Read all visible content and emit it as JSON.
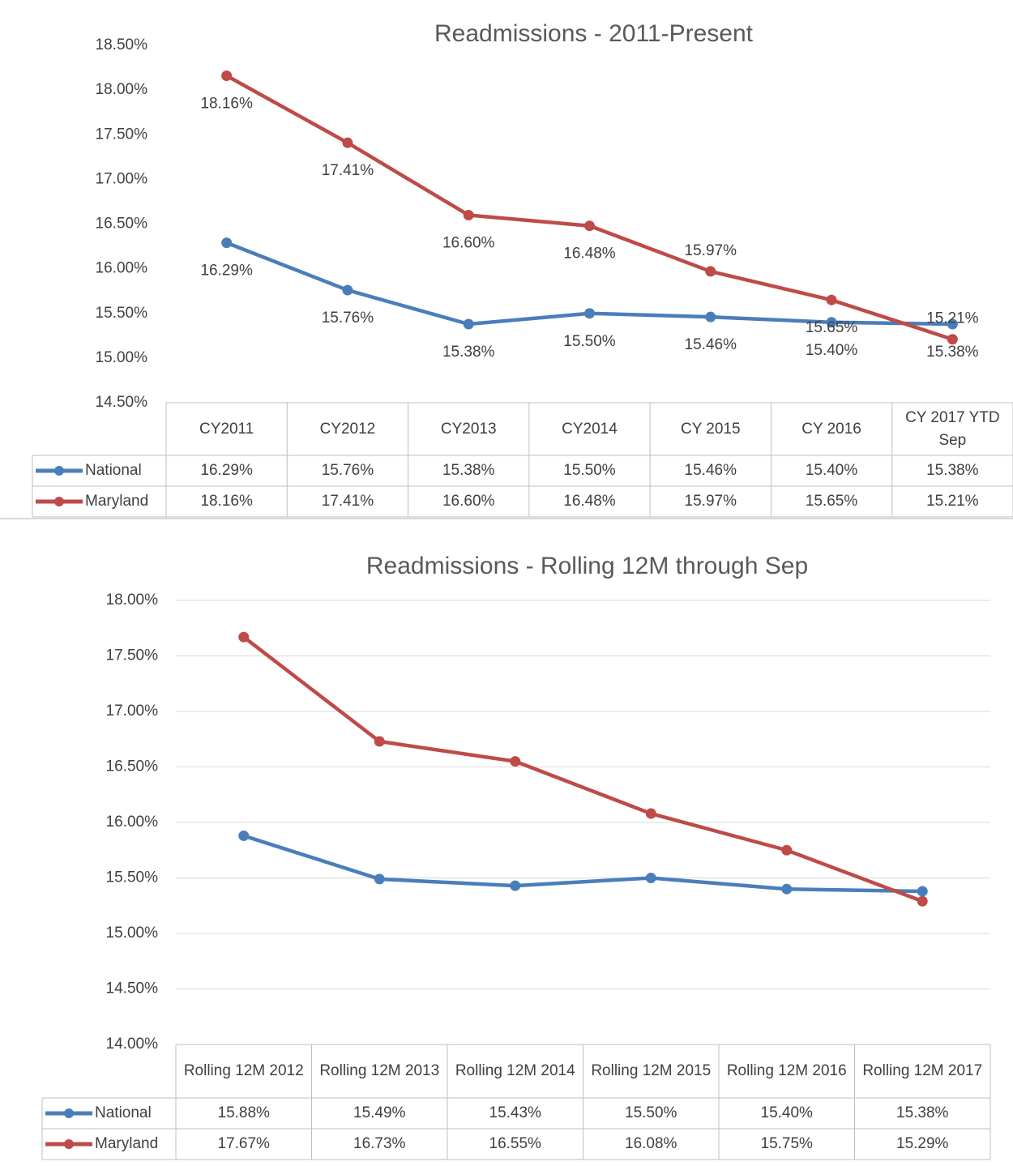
{
  "chart_data": [
    {
      "type": "line",
      "title": "Readmissions - 2011-Present",
      "categories": [
        "CY2011",
        "CY2012",
        "CY2013",
        "CY2014",
        "CY 2015",
        "CY 2016",
        "CY 2017 YTD Sep"
      ],
      "series": [
        {
          "name": "National",
          "color": "#4a7ebb",
          "values": [
            16.29,
            15.76,
            15.38,
            15.5,
            15.46,
            15.4,
            15.38
          ],
          "value_labels": [
            "16.29%",
            "15.76%",
            "15.38%",
            "15.50%",
            "15.46%",
            "15.40%",
            "15.38%"
          ]
        },
        {
          "name": "Maryland",
          "color": "#be4b48",
          "values": [
            18.16,
            17.41,
            16.6,
            16.48,
            15.97,
            15.65,
            15.21
          ],
          "value_labels": [
            "18.16%",
            "17.41%",
            "16.60%",
            "16.48%",
            "15.97%",
            "15.65%",
            "15.21%"
          ]
        }
      ],
      "ylim": [
        14.5,
        18.5
      ],
      "yticks": [
        {
          "value": 14.5,
          "label": "14.50%"
        },
        {
          "value": 15,
          "label": "15.00%"
        },
        {
          "value": 15.5,
          "label": "15.50%"
        },
        {
          "value": 16,
          "label": "16.00%"
        },
        {
          "value": 16.5,
          "label": "16.50%"
        },
        {
          "value": 17,
          "label": "17.00%"
        },
        {
          "value": 17.5,
          "label": "17.50%"
        },
        {
          "value": 18,
          "label": "18.00%"
        },
        {
          "value": 18.5,
          "label": "18.50%"
        }
      ],
      "grid": false,
      "data_labels": true
    },
    {
      "type": "line",
      "title": "Readmissions - Rolling 12M through Sep",
      "categories": [
        "Rolling 12M 2012",
        "Rolling 12M 2013",
        "Rolling 12M 2014",
        "Rolling 12M 2015",
        "Rolling 12M 2016",
        "Rolling 12M 2017"
      ],
      "series": [
        {
          "name": "National",
          "color": "#4a7ebb",
          "values": [
            15.88,
            15.49,
            15.43,
            15.5,
            15.4,
            15.38
          ],
          "value_labels": [
            "15.88%",
            "15.49%",
            "15.43%",
            "15.50%",
            "15.40%",
            "15.38%"
          ]
        },
        {
          "name": "Maryland",
          "color": "#be4b48",
          "values": [
            17.67,
            16.73,
            16.55,
            16.08,
            15.75,
            15.29
          ],
          "value_labels": [
            "17.67%",
            "16.73%",
            "16.55%",
            "16.08%",
            "15.75%",
            "15.29%"
          ]
        }
      ],
      "ylim": [
        14,
        18
      ],
      "yticks": [
        {
          "value": 14,
          "label": "14.00%"
        },
        {
          "value": 14.5,
          "label": "14.50%"
        },
        {
          "value": 15,
          "label": "15.00%"
        },
        {
          "value": 15.5,
          "label": "15.50%"
        },
        {
          "value": 16,
          "label": "16.00%"
        },
        {
          "value": 16.5,
          "label": "16.50%"
        },
        {
          "value": 17,
          "label": "17.00%"
        },
        {
          "value": 17.5,
          "label": "17.50%"
        },
        {
          "value": 18,
          "label": "18.00%"
        }
      ],
      "grid": true,
      "data_labels": false
    }
  ]
}
